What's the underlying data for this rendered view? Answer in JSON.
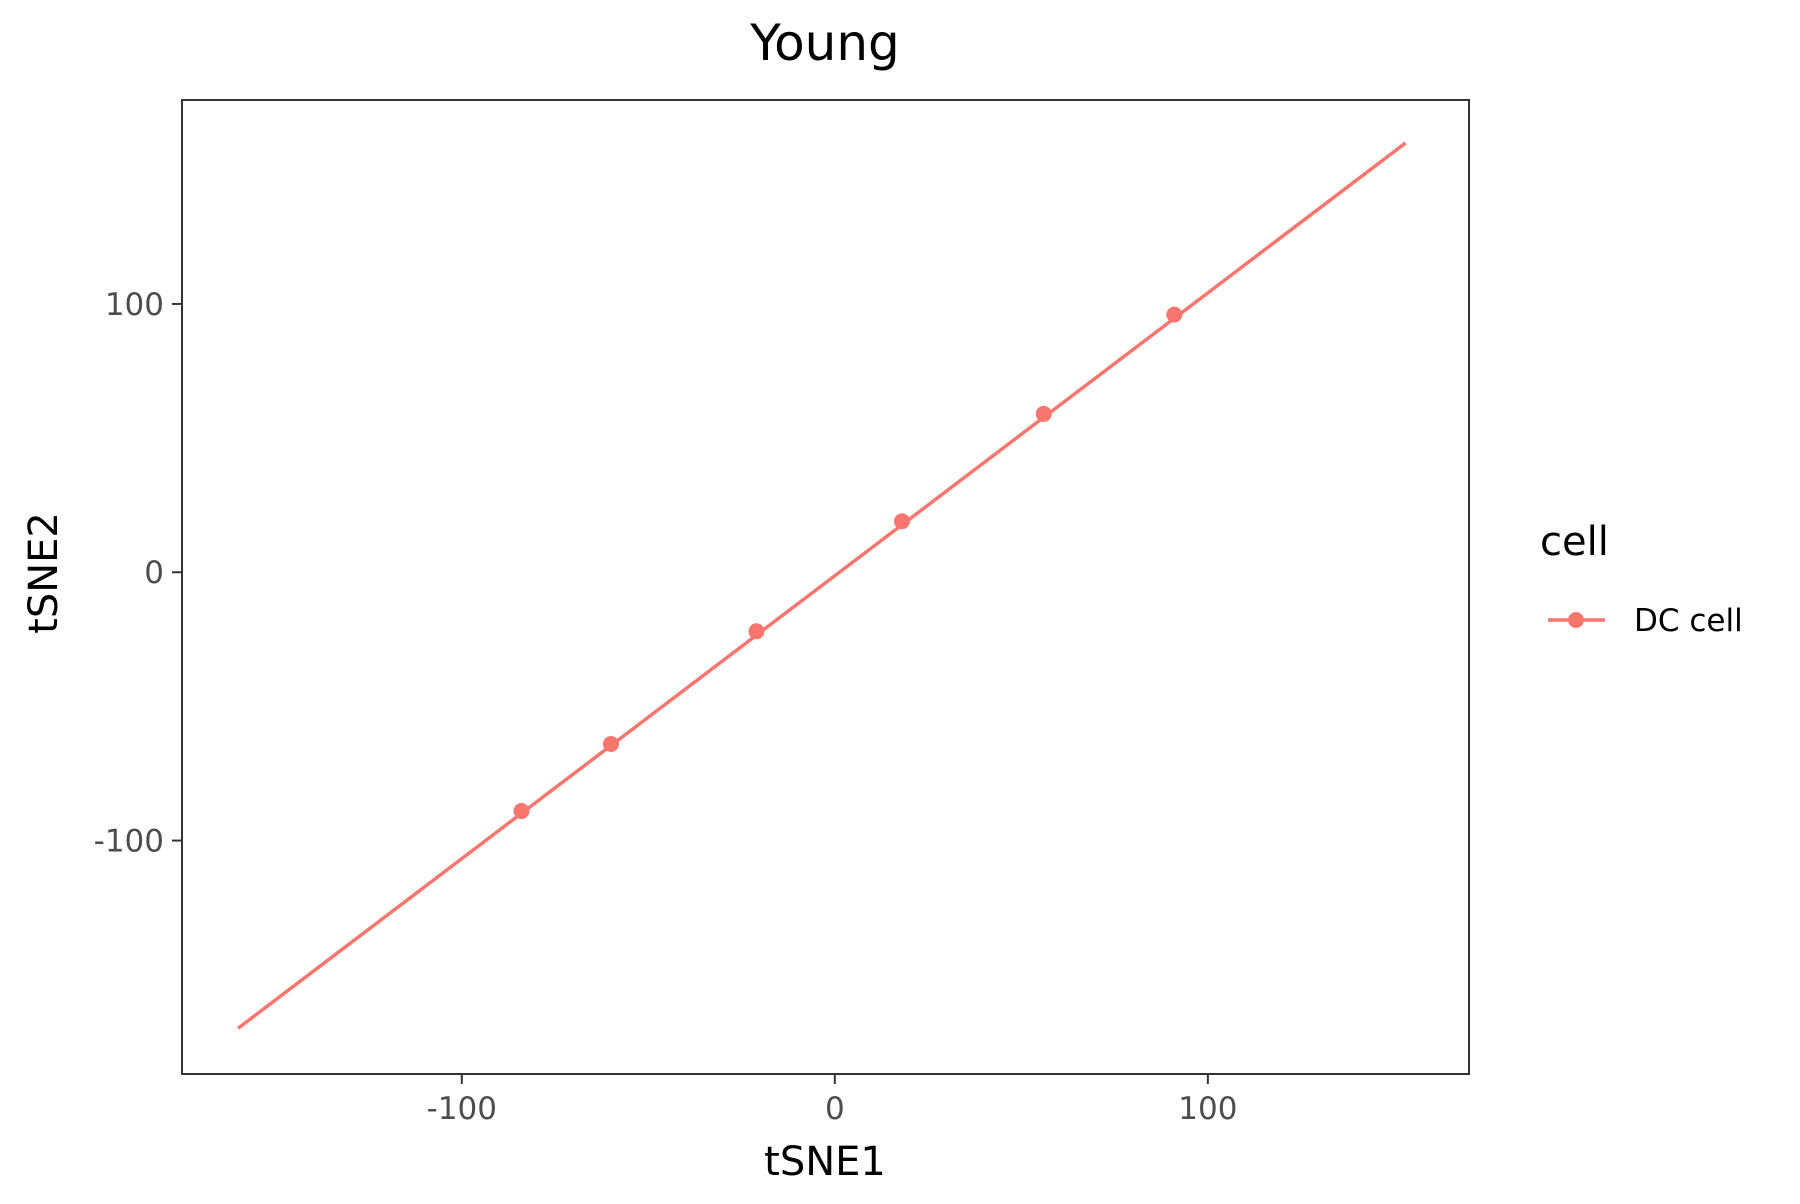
{
  "chart_data": {
    "type": "line",
    "title": "Young",
    "xlabel": "tSNE1",
    "ylabel": "tSNE2",
    "xlim": [
      -175,
      170
    ],
    "ylim": [
      -187,
      176
    ],
    "x_ticks": [
      -100,
      0,
      100
    ],
    "y_ticks": [
      -100,
      0,
      100
    ],
    "x_tick_labels": [
      "-100",
      "0",
      "100"
    ],
    "y_tick_labels": [
      "-100",
      "0",
      "100"
    ],
    "grid": false,
    "legend": {
      "title": "cell",
      "placement": "right",
      "entries": [
        "DC cell"
      ]
    },
    "series": [
      {
        "name": "DC cell",
        "color": "#F8766D",
        "line": {
          "x": [
            -160,
            153
          ],
          "y": [
            -170,
            160
          ]
        },
        "points": [
          {
            "x": -84,
            "y": -89
          },
          {
            "x": -60,
            "y": -64
          },
          {
            "x": -21,
            "y": -22
          },
          {
            "x": 18,
            "y": 19
          },
          {
            "x": 56,
            "y": 59
          },
          {
            "x": 91,
            "y": 96
          }
        ]
      }
    ]
  },
  "colors": {
    "series": "#F8766D",
    "axis_text": "#4D4D4D",
    "title_text": "#000000",
    "panel_border": "#333333"
  }
}
